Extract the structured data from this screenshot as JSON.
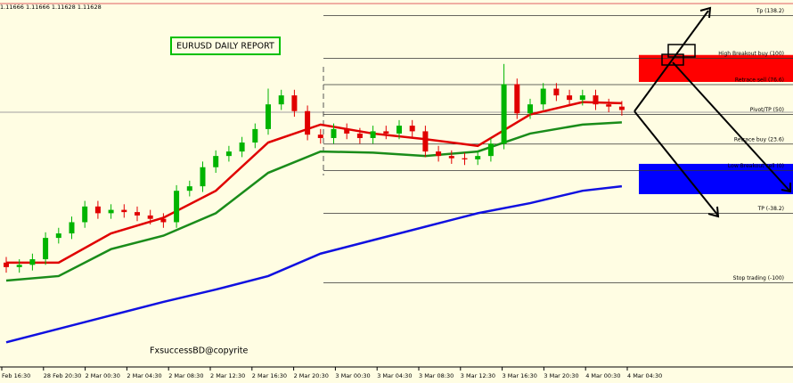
{
  "chart_data": {
    "type": "candlestick",
    "header": "1.11666 1.11666 1.11628 1.11628",
    "title": "EURUSD DAILY REPORT",
    "annotation": "FxsuccessBD@copyrite",
    "ylim": [
      -175,
      152
    ],
    "categories": [
      "Feb 16:30",
      "28 Feb 20:30",
      "2 Mar 00:30",
      "2 Mar 04:30",
      "2 Mar 08:30",
      "2 Mar 12:30",
      "2 Mar 16:30",
      "2 Mar 20:30",
      "3 Mar 00:30",
      "3 Mar 04:30",
      "3 Mar 08:30",
      "3 Mar 12:30",
      "3 Mar 16:30",
      "3 Mar 20:30",
      "4 Mar 00:30",
      "4 Mar 04:30"
    ],
    "up_color": "#00b400",
    "down_color": "#e00000",
    "open": [
      -82,
      -86,
      -84,
      -79,
      -60,
      -56,
      -46,
      -32,
      -38,
      -35,
      -37,
      -40,
      -43,
      -46,
      -18,
      -14,
      3,
      13,
      17,
      25,
      37,
      59,
      67,
      53,
      32,
      29,
      37,
      33,
      29,
      35,
      33,
      40,
      35,
      17,
      13,
      11,
      10,
      13,
      24,
      77,
      51,
      59,
      73,
      67,
      63,
      67,
      59,
      57
    ],
    "close": [
      -86,
      -84,
      -79,
      -60,
      -56,
      -46,
      -32,
      -38,
      -35,
      -37,
      -40,
      -43,
      -46,
      -18,
      -14,
      3,
      13,
      17,
      25,
      37,
      59,
      67,
      53,
      32,
      29,
      37,
      33,
      29,
      35,
      33,
      40,
      35,
      17,
      13,
      11,
      10,
      13,
      24,
      77,
      51,
      59,
      73,
      67,
      63,
      67,
      59,
      57,
      54
    ],
    "high": [
      -77,
      -79,
      -74,
      -55,
      -51,
      -41,
      -27,
      -27,
      -30,
      -30,
      -32,
      -35,
      -38,
      -13,
      -9,
      8,
      18,
      22,
      30,
      42,
      73,
      72,
      72,
      58,
      37,
      42,
      42,
      38,
      40,
      40,
      45,
      45,
      40,
      22,
      18,
      16,
      18,
      29,
      95,
      82,
      64,
      78,
      78,
      72,
      72,
      72,
      64,
      62
    ],
    "low": [
      -91,
      -91,
      -89,
      -84,
      -65,
      -61,
      -51,
      -43,
      -43,
      -42,
      -45,
      -48,
      -51,
      -51,
      -23,
      -19,
      -2,
      8,
      12,
      20,
      32,
      54,
      48,
      27,
      24,
      24,
      28,
      24,
      24,
      28,
      28,
      30,
      12,
      8,
      6,
      5,
      5,
      8,
      19,
      46,
      46,
      54,
      62,
      58,
      58,
      54,
      52,
      49
    ],
    "ma_x": [
      0,
      4,
      8,
      12,
      16,
      20,
      24,
      28,
      32,
      36,
      40,
      44,
      47
    ],
    "moving_averages": [
      {
        "color": "#e00000",
        "values": [
          -82,
          -82,
          -56,
          -42,
          -18,
          25,
          41,
          33,
          28,
          22,
          50,
          61,
          60
        ]
      },
      {
        "color": "#1a8c1a",
        "values": [
          -98,
          -94,
          -70,
          -58,
          -38,
          -2,
          17,
          16,
          13,
          17,
          33,
          41,
          43
        ]
      },
      {
        "color": "#1010e0",
        "values": [
          -153,
          -141,
          -129,
          -117,
          -106,
          -94,
          -74,
          -62,
          -50,
          -38,
          -29,
          -18,
          -14
        ]
      }
    ],
    "levels": [
      {
        "value": 138.2,
        "label": "Tp (138.2)"
      },
      {
        "value": 100,
        "label": "High  Breakout buy (100)"
      },
      {
        "value": 76.6,
        "label": "Retrace sell (76.6)"
      },
      {
        "value": 50,
        "label": "Pivot/TP (50)"
      },
      {
        "value": 23.6,
        "label": "Retrace buy (23.6)"
      },
      {
        "value": 0,
        "label": "Low  Breakout sell (0)"
      },
      {
        "value": -38.2,
        "label": "TP (-38.2)"
      },
      {
        "value": -100,
        "label": "Stop trading (-100)"
      }
    ],
    "zones": [
      {
        "from": 79,
        "to": 103,
        "color": "#ff0000"
      },
      {
        "from": -21,
        "to": 6,
        "color": "#0000ff"
      }
    ]
  }
}
